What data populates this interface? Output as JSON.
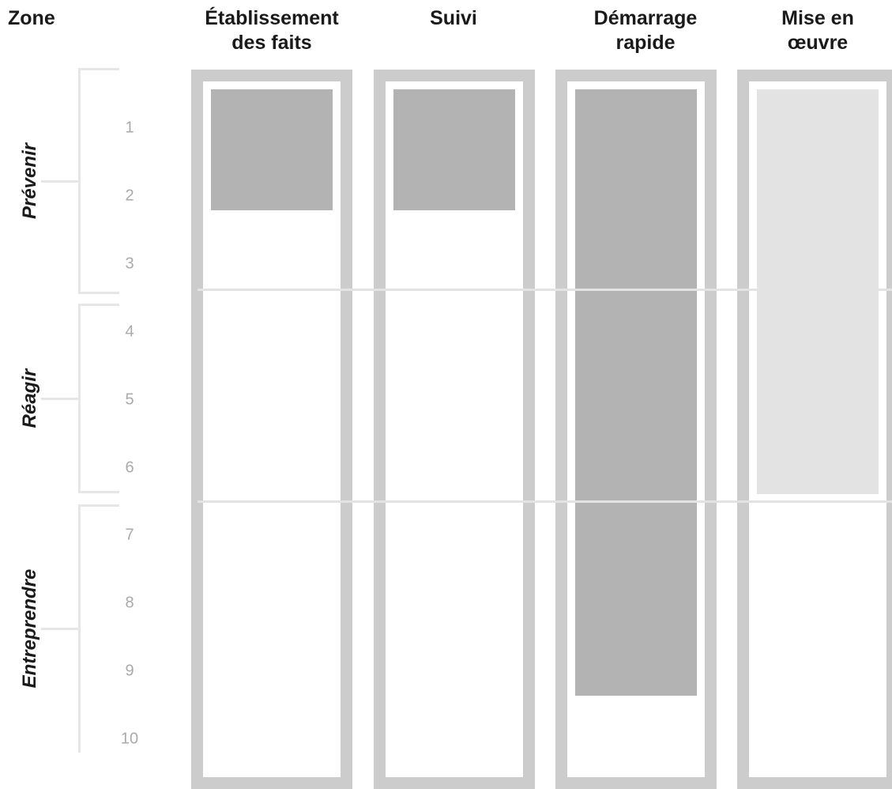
{
  "header": {
    "zone_label": "Zone"
  },
  "columns": [
    {
      "label": "Établissement\ndes faits",
      "start": 0,
      "end": 2,
      "fill": "#b3b3b3"
    },
    {
      "label": "Suivi",
      "start": 0,
      "end": 2,
      "fill": "#b3b3b3"
    },
    {
      "label": "Démarrage\nrapide",
      "start": 0,
      "end": 9,
      "fill": "#b3b3b3"
    },
    {
      "label": "Mise en\nœuvre",
      "start": 0,
      "end": 6,
      "fill": "#e3e3e3"
    }
  ],
  "zones": [
    {
      "label": "Prévenir",
      "from": 1,
      "to": 3
    },
    {
      "label": "Réagir",
      "from": 4,
      "to": 6
    },
    {
      "label": "Entreprendre",
      "from": 7,
      "to": 10
    }
  ],
  "steps": [
    "1",
    "2",
    "3",
    "4",
    "5",
    "6",
    "7",
    "8",
    "9",
    "10"
  ],
  "colors": {
    "frame": "#cccccc",
    "guide": "#e6e6e6",
    "step_text": "#aaaaaa"
  }
}
